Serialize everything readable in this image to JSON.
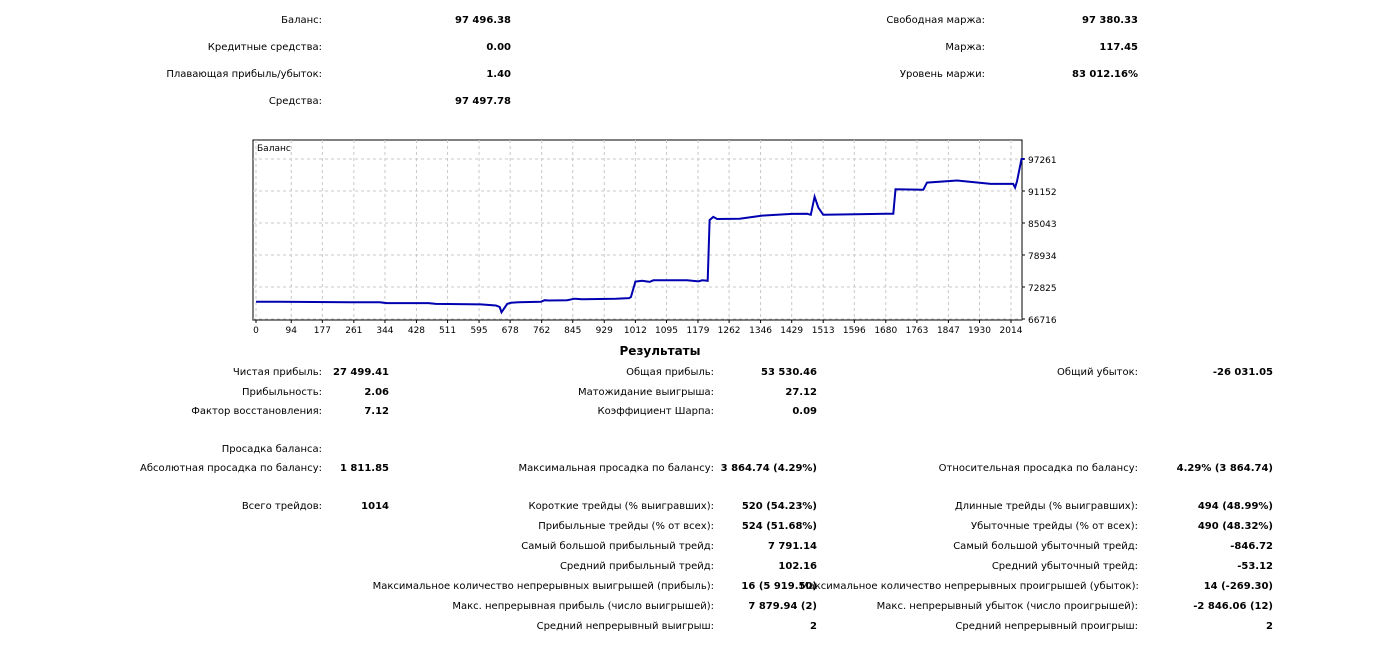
{
  "summary": {
    "left": [
      {
        "label": "Баланс:",
        "value": "97 496.38"
      },
      {
        "label": "Кредитные средства:",
        "value": "0.00"
      },
      {
        "label": "Плавающая прибыль/убыток:",
        "value": "1.40"
      },
      {
        "label": "Средства:",
        "value": "97 497.78"
      }
    ],
    "right": [
      {
        "label": "Свободная маржа:",
        "value": "97 380.33"
      },
      {
        "label": "Маржа:",
        "value": "117.45"
      },
      {
        "label": "Уровень маржи:",
        "value": "83 012.16%"
      }
    ]
  },
  "chart_data": {
    "type": "line",
    "title": "Баланс",
    "xlabel": "",
    "ylabel": "",
    "x_ticks": [
      0,
      94,
      177,
      261,
      344,
      428,
      511,
      595,
      678,
      762,
      845,
      929,
      1012,
      1095,
      1179,
      1262,
      1346,
      1429,
      1513,
      1596,
      1680,
      1763,
      1847,
      1930,
      2014
    ],
    "y_ticks": [
      66716,
      72825,
      78934,
      85043,
      91152,
      97261
    ],
    "xlim": [
      0,
      2050
    ],
    "ylim": [
      66716,
      97261
    ],
    "grid": true,
    "line_color": "#0000b0",
    "series": [
      {
        "name": "Баланс",
        "x": [
          0,
          60,
          250,
          330,
          350,
          460,
          480,
          600,
          640,
          650,
          655,
          670,
          680,
          700,
          760,
          770,
          780,
          830,
          850,
          870,
          960,
          995,
          1000,
          1012,
          1030,
          1050,
          1060,
          1150,
          1180,
          1190,
          1205,
          1210,
          1220,
          1230,
          1290,
          1350,
          1430,
          1470,
          1480,
          1490,
          1500,
          1513,
          1600,
          1680,
          1700,
          1706,
          1780,
          1790,
          1870,
          1960,
          2020,
          2025,
          2030,
          2042,
          2050
        ],
        "y": [
          70000,
          70000,
          69900,
          69900,
          69750,
          69750,
          69600,
          69500,
          69300,
          69000,
          68000,
          69600,
          69800,
          69900,
          70000,
          70300,
          70250,
          70300,
          70600,
          70500,
          70600,
          70700,
          70900,
          73850,
          74000,
          73800,
          74100,
          74100,
          73900,
          74100,
          74000,
          85600,
          86200,
          85800,
          85850,
          86450,
          86780,
          86800,
          86600,
          90060,
          88000,
          86600,
          86700,
          86800,
          86800,
          91470,
          91400,
          92760,
          93150,
          92500,
          92500,
          91800,
          93000,
          97261,
          97261
        ]
      }
    ]
  },
  "results": {
    "title": "Результаты",
    "rows": [
      {
        "c1": {
          "label": "Чистая прибыль:",
          "value": "27 499.41"
        },
        "c2": {
          "label": "Общая прибыль:",
          "value": "53 530.46"
        },
        "c3": {
          "label": "Общий убыток:",
          "value": "-26 031.05"
        }
      },
      {
        "c1": {
          "label": "Прибыльность:",
          "value": "2.06"
        },
        "c2": {
          "label": "Матожидание выигрыша:",
          "value": "27.12"
        }
      },
      {
        "c1": {
          "label": "Фактор восстановления:",
          "value": "7.12"
        },
        "c2": {
          "label": "Коэффициент Шарпа:",
          "value": "0.09"
        }
      },
      {
        "c1": {
          "label": "Просадка баланса:"
        }
      },
      {
        "c1": {
          "label": "Абсолютная просадка по балансу:",
          "value": "1 811.85"
        },
        "c2": {
          "label": "Максимальная просадка по балансу:",
          "value": "3 864.74 (4.29%)"
        },
        "c3": {
          "label": "Относительная просадка по балансу:",
          "value": "4.29% (3 864.74)"
        }
      },
      {
        "c1": {
          "label": "Всего трейдов:",
          "value": "1014"
        },
        "c2": {
          "label": "Короткие трейды (% выигравших):",
          "value": "520 (54.23%)"
        },
        "c3": {
          "label": "Длинные трейды (% выигравших):",
          "value": "494 (48.99%)"
        }
      },
      {
        "c2": {
          "label": "Прибыльные трейды (% от всех):",
          "value": "524 (51.68%)"
        },
        "c3": {
          "label": "Убыточные трейды (% от всех):",
          "value": "490 (48.32%)"
        }
      },
      {
        "c2": {
          "label": "Самый большой прибыльный трейд:",
          "value": "7 791.14"
        },
        "c3": {
          "label": "Самый большой убыточный трейд:",
          "value": "-846.72"
        }
      },
      {
        "c2": {
          "label": "Средний прибыльный трейд:",
          "value": "102.16"
        },
        "c3": {
          "label": "Средний убыточный трейд:",
          "value": "-53.12"
        }
      },
      {
        "c2": {
          "label": "Максимальное количество непрерывных выигрышей (прибыль):",
          "value": "16 (5 919.50)"
        },
        "c3": {
          "label": "Максимальное количество непрерывных проигрышей (убыток):",
          "value": "14 (-269.30)"
        }
      },
      {
        "c2": {
          "label": "Макс. непрерывная прибыль (число выигрышей):",
          "value": "7 879.94 (2)"
        },
        "c3": {
          "label": "Макс. непрерывный убыток (число проигрышей):",
          "value": "-2 846.06 (12)"
        }
      },
      {
        "c2": {
          "label": "Средний непрерывный выигрыш:",
          "value": "2"
        },
        "c3": {
          "label": "Средний непрерывный проигрыш:",
          "value": "2"
        }
      }
    ]
  }
}
